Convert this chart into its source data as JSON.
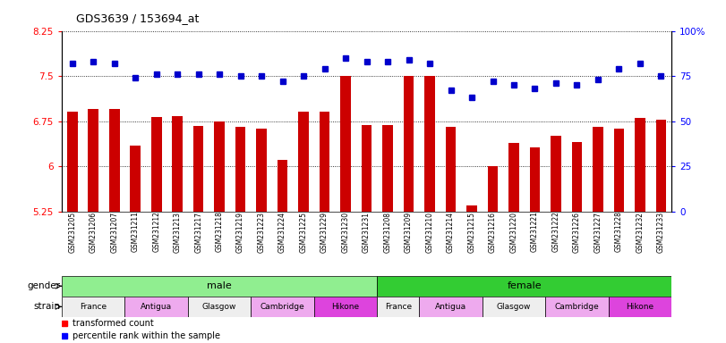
{
  "title": "GDS3639 / 153694_at",
  "samples": [
    "GSM231205",
    "GSM231206",
    "GSM231207",
    "GSM231211",
    "GSM231212",
    "GSM231213",
    "GSM231217",
    "GSM231218",
    "GSM231219",
    "GSM231223",
    "GSM231224",
    "GSM231225",
    "GSM231229",
    "GSM231230",
    "GSM231231",
    "GSM231208",
    "GSM231209",
    "GSM231210",
    "GSM231214",
    "GSM231215",
    "GSM231216",
    "GSM231220",
    "GSM231221",
    "GSM231222",
    "GSM231226",
    "GSM231227",
    "GSM231228",
    "GSM231232",
    "GSM231233"
  ],
  "bar_values": [
    6.9,
    6.95,
    6.95,
    6.35,
    6.82,
    6.83,
    6.67,
    6.75,
    6.65,
    6.63,
    6.1,
    6.9,
    6.9,
    7.5,
    6.68,
    6.68,
    7.5,
    7.5,
    6.65,
    5.35,
    6.0,
    6.38,
    6.32,
    6.5,
    6.4,
    6.65,
    6.62,
    6.8,
    6.78
  ],
  "percentile_values": [
    82,
    83,
    82,
    74,
    76,
    76,
    76,
    76,
    75,
    75,
    72,
    75,
    79,
    85,
    83,
    83,
    84,
    82,
    67,
    63,
    72,
    70,
    68,
    71,
    70,
    73,
    79,
    82,
    75
  ],
  "gender_spans": [
    15,
    14
  ],
  "gender_color_male": "#90ee90",
  "gender_color_female": "#33cc33",
  "bar_color": "#cc0000",
  "percentile_color": "#0000cc",
  "ylim_left": [
    5.25,
    8.25
  ],
  "ylim_right": [
    0,
    100
  ],
  "yticks_left": [
    5.25,
    6.0,
    6.75,
    7.5,
    8.25
  ],
  "yticks_right": [
    0,
    25,
    50,
    75,
    100
  ],
  "ytick_labels_left": [
    "5.25",
    "6",
    "6.75",
    "7.5",
    "8.25"
  ],
  "ytick_labels_right": [
    "0",
    "25",
    "50",
    "75",
    "100%"
  ],
  "strain_defs": [
    [
      "France",
      0,
      3,
      "#eeeeee"
    ],
    [
      "Antigua",
      3,
      3,
      "#eeaaee"
    ],
    [
      "Glasgow",
      6,
      3,
      "#eeeeee"
    ],
    [
      "Cambridge",
      9,
      3,
      "#eeaaee"
    ],
    [
      "Hikone",
      12,
      3,
      "#dd44dd"
    ],
    [
      "France",
      15,
      2,
      "#eeeeee"
    ],
    [
      "Antigua",
      17,
      3,
      "#eeaaee"
    ],
    [
      "Glasgow",
      20,
      3,
      "#eeeeee"
    ],
    [
      "Cambridge",
      23,
      3,
      "#eeaaee"
    ],
    [
      "Hikone",
      26,
      3,
      "#dd44dd"
    ]
  ]
}
